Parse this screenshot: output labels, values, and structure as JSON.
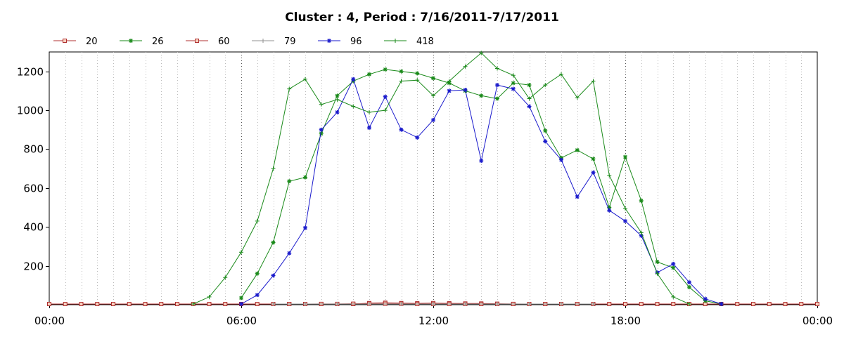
{
  "chart_data": {
    "type": "line",
    "title": "Cluster : 4, Period : 7/16/2011-7/17/2011",
    "xlabel": "",
    "ylabel": "",
    "x_tick_labels": [
      "00:00",
      "06:00",
      "12:00",
      "18:00",
      "00:00"
    ],
    "y_tick_labels": [
      "200",
      "400",
      "600",
      "800",
      "1000",
      "1200"
    ],
    "xlim_hours": [
      0,
      24
    ],
    "ylim": [
      0,
      1300
    ],
    "grid": "vertical dotted every 30 minutes",
    "legend_position": "top-left",
    "series": [
      {
        "name": "20",
        "color": "#b03030",
        "marker": "square",
        "points": [
          [
            0,
            0
          ],
          [
            0.5,
            0
          ],
          [
            1,
            0
          ],
          [
            1.5,
            0
          ],
          [
            2,
            0
          ],
          [
            2.5,
            0
          ],
          [
            3,
            0
          ],
          [
            3.5,
            0
          ],
          [
            4,
            0
          ],
          [
            4.5,
            0
          ],
          [
            5,
            0
          ],
          [
            5.5,
            0
          ],
          [
            6,
            0
          ],
          [
            6.5,
            0
          ],
          [
            7,
            0
          ],
          [
            7.5,
            0
          ],
          [
            8,
            0
          ],
          [
            8.5,
            0
          ],
          [
            9,
            2
          ],
          [
            9.5,
            3
          ],
          [
            10,
            8
          ],
          [
            10.5,
            10
          ],
          [
            11,
            8
          ],
          [
            11.5,
            7
          ],
          [
            12,
            8
          ],
          [
            12.5,
            7
          ],
          [
            13,
            6
          ],
          [
            13.5,
            6
          ],
          [
            14,
            5
          ],
          [
            14.5,
            4
          ],
          [
            15,
            3
          ],
          [
            15.5,
            2
          ],
          [
            16,
            1
          ],
          [
            16.5,
            0
          ],
          [
            17,
            0
          ],
          [
            17.5,
            0
          ],
          [
            18,
            0
          ],
          [
            18.5,
            0
          ],
          [
            19,
            0
          ],
          [
            19.5,
            0
          ],
          [
            20,
            0
          ],
          [
            20.5,
            0
          ],
          [
            21,
            0
          ],
          [
            21.5,
            0
          ],
          [
            22,
            0
          ],
          [
            22.5,
            0
          ],
          [
            23,
            0
          ],
          [
            23.5,
            0
          ],
          [
            24,
            0
          ]
        ]
      },
      {
        "name": "26",
        "color": "#1a8a1a",
        "marker": "asterisk",
        "points": [
          [
            6,
            35
          ],
          [
            6.5,
            160
          ],
          [
            7,
            320
          ],
          [
            7.5,
            635
          ],
          [
            8,
            655
          ],
          [
            8.5,
            880
          ],
          [
            9,
            1075
          ],
          [
            9.5,
            1150
          ],
          [
            10,
            1185
          ],
          [
            10.5,
            1210
          ],
          [
            11,
            1200
          ],
          [
            11.5,
            1190
          ],
          [
            12,
            1165
          ],
          [
            12.5,
            1140
          ],
          [
            13,
            1100
          ],
          [
            13.5,
            1075
          ],
          [
            14,
            1060
          ],
          [
            14.5,
            1140
          ],
          [
            15,
            1130
          ],
          [
            15.5,
            895
          ],
          [
            16,
            755
          ],
          [
            16.5,
            795
          ],
          [
            17,
            750
          ],
          [
            17.5,
            500
          ],
          [
            18,
            760
          ],
          [
            18.5,
            535
          ],
          [
            19,
            220
          ],
          [
            19.5,
            190
          ],
          [
            20,
            90
          ],
          [
            20.5,
            20
          ],
          [
            21,
            0
          ]
        ]
      },
      {
        "name": "60",
        "color": "#b03030",
        "marker": "square",
        "points": [
          [
            7,
            0
          ],
          [
            7.5,
            2
          ],
          [
            8,
            3
          ],
          [
            8.5,
            4
          ],
          [
            9,
            4
          ],
          [
            9.5,
            5
          ],
          [
            10,
            5
          ],
          [
            10.5,
            5
          ],
          [
            11,
            5
          ],
          [
            11.5,
            4
          ],
          [
            12,
            4
          ],
          [
            12.5,
            4
          ],
          [
            13,
            4
          ],
          [
            13.5,
            3
          ],
          [
            14,
            3
          ],
          [
            14.5,
            2
          ],
          [
            15,
            2
          ],
          [
            15.5,
            1
          ],
          [
            16,
            1
          ],
          [
            16.5,
            0
          ]
        ]
      },
      {
        "name": "79",
        "color": "#909090",
        "marker": "plus",
        "points": [
          [
            7,
            0
          ],
          [
            8,
            1
          ],
          [
            9,
            2
          ],
          [
            10,
            3
          ],
          [
            11,
            3
          ],
          [
            12,
            3
          ],
          [
            13,
            2
          ],
          [
            14,
            2
          ],
          [
            15,
            1
          ],
          [
            16,
            1
          ],
          [
            17,
            0
          ]
        ]
      },
      {
        "name": "96",
        "color": "#1a1acc",
        "marker": "asterisk",
        "points": [
          [
            6,
            0
          ],
          [
            6.5,
            50
          ],
          [
            7,
            150
          ],
          [
            7.5,
            265
          ],
          [
            8,
            395
          ],
          [
            8.5,
            900
          ],
          [
            9,
            990
          ],
          [
            9.5,
            1160
          ],
          [
            10,
            910
          ],
          [
            10.5,
            1070
          ],
          [
            11,
            900
          ],
          [
            11.5,
            860
          ],
          [
            12,
            950
          ],
          [
            12.5,
            1100
          ],
          [
            13,
            1105
          ],
          [
            13.5,
            740
          ],
          [
            14,
            1130
          ],
          [
            14.5,
            1110
          ],
          [
            15,
            1020
          ],
          [
            15.5,
            840
          ],
          [
            16,
            745
          ],
          [
            16.5,
            555
          ],
          [
            17,
            680
          ],
          [
            17.5,
            485
          ],
          [
            18,
            430
          ],
          [
            18.5,
            355
          ],
          [
            19,
            165
          ],
          [
            19.5,
            210
          ],
          [
            20,
            115
          ],
          [
            20.5,
            30
          ],
          [
            21,
            0
          ]
        ]
      },
      {
        "name": "418",
        "color": "#1a8a1a",
        "marker": "plus",
        "points": [
          [
            4.5,
            0
          ],
          [
            5,
            40
          ],
          [
            5.5,
            140
          ],
          [
            6,
            270
          ],
          [
            6.5,
            430
          ],
          [
            7,
            700
          ],
          [
            7.5,
            1110
          ],
          [
            8,
            1160
          ],
          [
            8.5,
            1030
          ],
          [
            9,
            1055
          ],
          [
            9.5,
            1020
          ],
          [
            10,
            990
          ],
          [
            10.5,
            1000
          ],
          [
            11,
            1150
          ],
          [
            11.5,
            1155
          ],
          [
            12,
            1075
          ],
          [
            12.5,
            1150
          ],
          [
            13,
            1225
          ],
          [
            13.5,
            1295
          ],
          [
            14,
            1215
          ],
          [
            14.5,
            1180
          ],
          [
            15,
            1060
          ],
          [
            15.5,
            1130
          ],
          [
            16,
            1185
          ],
          [
            16.5,
            1065
          ],
          [
            17,
            1150
          ],
          [
            17.5,
            665
          ],
          [
            18,
            495
          ],
          [
            18.5,
            370
          ],
          [
            19,
            160
          ],
          [
            19.5,
            40
          ],
          [
            20,
            0
          ]
        ]
      }
    ]
  }
}
